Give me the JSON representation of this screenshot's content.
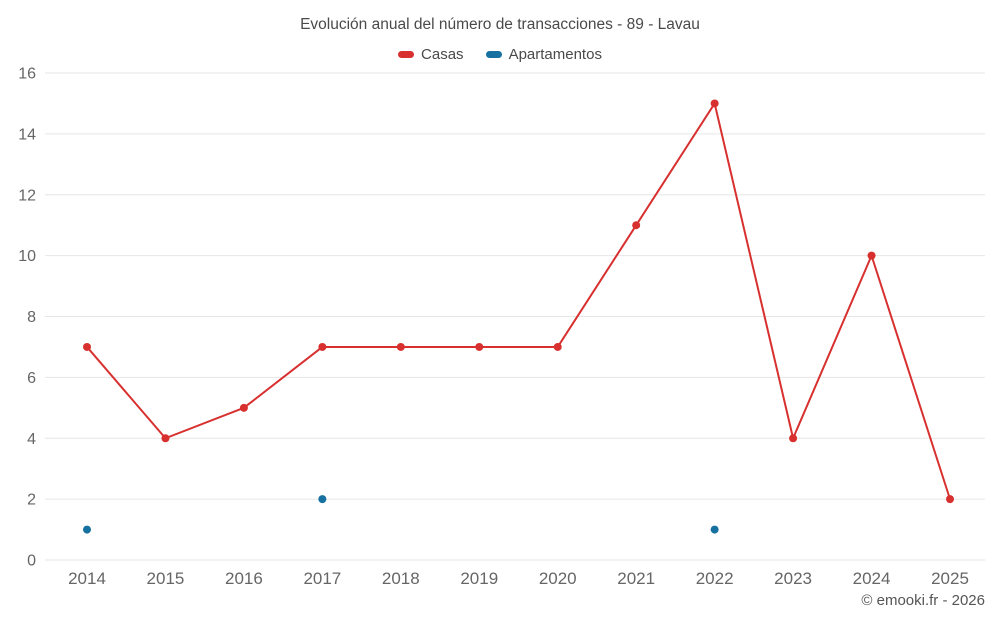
{
  "chart_data": {
    "type": "line",
    "title": "Evolución anual del número de transacciones - 89 - Lavau",
    "categories": [
      "2014",
      "2015",
      "2016",
      "2017",
      "2018",
      "2019",
      "2020",
      "2021",
      "2022",
      "2023",
      "2024",
      "2025"
    ],
    "series": [
      {
        "name": "Casas",
        "type": "line",
        "color": "#d7302f",
        "values": [
          7,
          4,
          5,
          7,
          7,
          7,
          7,
          11,
          15,
          4,
          10,
          2
        ]
      },
      {
        "name": "Apartamentos",
        "type": "scatter",
        "color": "#1670a0",
        "values": [
          1,
          null,
          null,
          2,
          null,
          null,
          null,
          null,
          1,
          null,
          null,
          null
        ]
      }
    ],
    "xlabel": "",
    "ylabel": "",
    "ylim": [
      0,
      16
    ],
    "ytick_step": 2,
    "grid": true,
    "grid_color": "#e6e6e6",
    "tick_color": "#666666",
    "legend_position": "top",
    "footer": "© emooki.fr - 2026"
  }
}
